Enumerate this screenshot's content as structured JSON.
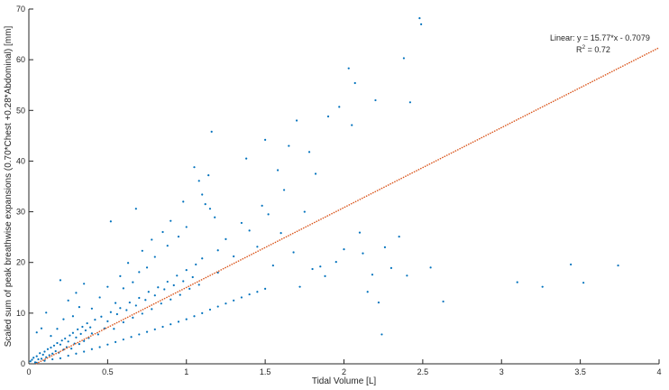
{
  "chart_data": {
    "type": "scatter",
    "title": "",
    "xlabel": "Tidal Volume [L]",
    "ylabel": "Scaled sum of peak breathwise expansions (0.70*Chest +0.28*Abdominal) [mm]",
    "xlim": [
      0,
      4
    ],
    "ylim": [
      0,
      70
    ],
    "xticks": [
      0,
      0.5,
      1,
      1.5,
      2,
      2.5,
      3,
      3.5,
      4
    ],
    "xtick_labels": [
      "0",
      "0.5",
      "1",
      "1.5",
      "2",
      "2.5",
      "3",
      "3.5",
      "4"
    ],
    "yticks": [
      0,
      10,
      20,
      30,
      40,
      50,
      60,
      70
    ],
    "ytick_labels": [
      "0",
      "10",
      "20",
      "30",
      "40",
      "50",
      "60",
      "70"
    ],
    "grid": false,
    "colors": {
      "points": "#0072BD",
      "fit": "#D95319",
      "axis": "#262626"
    },
    "series": [
      {
        "type": "scatter",
        "points": [
          [
            0.01,
            0.5
          ],
          [
            0.02,
            0.8
          ],
          [
            0.03,
            1.2
          ],
          [
            0.04,
            0.3
          ],
          [
            0.05,
            1.5
          ],
          [
            0.06,
            0.9
          ],
          [
            0.07,
            2.1
          ],
          [
            0.08,
            1.0
          ],
          [
            0.09,
            1.8
          ],
          [
            0.1,
            2.4
          ],
          [
            0.11,
            1.3
          ],
          [
            0.12,
            2.9
          ],
          [
            0.13,
            1.7
          ],
          [
            0.14,
            3.2
          ],
          [
            0.15,
            2.0
          ],
          [
            0.16,
            3.6
          ],
          [
            0.17,
            2.5
          ],
          [
            0.18,
            4.1
          ],
          [
            0.19,
            2.2
          ],
          [
            0.2,
            3.8
          ],
          [
            0.21,
            4.6
          ],
          [
            0.22,
            2.8
          ],
          [
            0.23,
            5.0
          ],
          [
            0.24,
            3.3
          ],
          [
            0.25,
            4.4
          ],
          [
            0.26,
            5.6
          ],
          [
            0.27,
            3.0
          ],
          [
            0.28,
            6.1
          ],
          [
            0.29,
            4.0
          ],
          [
            0.3,
            5.2
          ],
          [
            0.31,
            6.8
          ],
          [
            0.32,
            3.9
          ],
          [
            0.33,
            5.9
          ],
          [
            0.34,
            7.3
          ],
          [
            0.35,
            4.5
          ],
          [
            0.36,
            6.6
          ],
          [
            0.37,
            8.0
          ],
          [
            0.38,
            5.1
          ],
          [
            0.39,
            7.2
          ],
          [
            0.4,
            6.0
          ],
          [
            0.42,
            8.7
          ],
          [
            0.44,
            5.8
          ],
          [
            0.46,
            9.3
          ],
          [
            0.48,
            7.0
          ],
          [
            0.5,
            8.4
          ],
          [
            0.52,
            10.2
          ],
          [
            0.54,
            6.9
          ],
          [
            0.56,
            9.8
          ],
          [
            0.58,
            11.0
          ],
          [
            0.6,
            8.2
          ],
          [
            0.62,
            10.6
          ],
          [
            0.64,
            12.1
          ],
          [
            0.66,
            9.1
          ],
          [
            0.68,
            11.5
          ],
          [
            0.7,
            13.0
          ],
          [
            0.72,
            9.9
          ],
          [
            0.74,
            12.6
          ],
          [
            0.76,
            14.2
          ],
          [
            0.78,
            10.8
          ],
          [
            0.8,
            13.5
          ],
          [
            0.82,
            15.1
          ],
          [
            0.84,
            11.9
          ],
          [
            0.86,
            14.7
          ],
          [
            0.88,
            16.2
          ],
          [
            0.9,
            12.7
          ],
          [
            0.92,
            15.5
          ],
          [
            0.94,
            17.4
          ],
          [
            0.96,
            13.6
          ],
          [
            0.98,
            16.3
          ],
          [
            1.0,
            18.5
          ],
          [
            1.02,
            14.8
          ],
          [
            1.04,
            17.1
          ],
          [
            1.06,
            19.6
          ],
          [
            1.08,
            15.6
          ],
          [
            1.1,
            20.8
          ],
          [
            1.12,
            31.5
          ],
          [
            1.14,
            37.2
          ],
          [
            1.16,
            45.8
          ],
          [
            1.18,
            28.9
          ],
          [
            1.2,
            22.4
          ],
          [
            1.05,
            38.8
          ],
          [
            1.08,
            36.1
          ],
          [
            1.1,
            33.4
          ],
          [
            1.15,
            30.6
          ],
          [
            1.2,
            18.0
          ],
          [
            1.25,
            24.6
          ],
          [
            1.3,
            21.2
          ],
          [
            1.35,
            27.8
          ],
          [
            1.38,
            40.5
          ],
          [
            1.4,
            26.3
          ],
          [
            1.45,
            23.1
          ],
          [
            1.48,
            31.2
          ],
          [
            1.5,
            44.2
          ],
          [
            1.52,
            29.5
          ],
          [
            1.55,
            19.4
          ],
          [
            1.58,
            38.2
          ],
          [
            1.6,
            25.8
          ],
          [
            1.62,
            34.3
          ],
          [
            1.65,
            43.0
          ],
          [
            1.68,
            22.0
          ],
          [
            1.7,
            48.0
          ],
          [
            1.72,
            15.2
          ],
          [
            1.75,
            30.0
          ],
          [
            1.78,
            41.8
          ],
          [
            1.8,
            18.7
          ],
          [
            1.82,
            37.5
          ],
          [
            1.85,
            19.2
          ],
          [
            1.88,
            17.3
          ],
          [
            1.9,
            48.8
          ],
          [
            1.95,
            20.1
          ],
          [
            1.97,
            50.7
          ],
          [
            2.0,
            22.6
          ],
          [
            2.03,
            58.3
          ],
          [
            2.05,
            47.1
          ],
          [
            2.07,
            55.4
          ],
          [
            2.1,
            25.9
          ],
          [
            2.12,
            21.8
          ],
          [
            2.15,
            14.2
          ],
          [
            2.18,
            17.6
          ],
          [
            2.2,
            52.0
          ],
          [
            2.22,
            12.1
          ],
          [
            2.24,
            5.8
          ],
          [
            2.26,
            23.0
          ],
          [
            2.3,
            18.9
          ],
          [
            2.35,
            25.1
          ],
          [
            2.38,
            60.3
          ],
          [
            2.4,
            17.4
          ],
          [
            2.42,
            51.6
          ],
          [
            2.48,
            68.2
          ],
          [
            2.49,
            67.0
          ],
          [
            2.55,
            19.0
          ],
          [
            2.63,
            12.3
          ],
          [
            3.1,
            16.1
          ],
          [
            3.26,
            15.2
          ],
          [
            3.44,
            19.6
          ],
          [
            3.52,
            16.0
          ],
          [
            3.74,
            19.4
          ],
          [
            0.05,
            6.2
          ],
          [
            0.08,
            7.0
          ],
          [
            0.11,
            10.1
          ],
          [
            0.14,
            5.5
          ],
          [
            0.18,
            6.9
          ],
          [
            0.2,
            16.5
          ],
          [
            0.22,
            8.8
          ],
          [
            0.25,
            12.5
          ],
          [
            0.28,
            9.4
          ],
          [
            0.3,
            14.0
          ],
          [
            0.32,
            11.2
          ],
          [
            0.35,
            15.8
          ],
          [
            0.4,
            10.9
          ],
          [
            0.45,
            13.1
          ],
          [
            0.5,
            15.2
          ],
          [
            0.52,
            28.1
          ],
          [
            0.55,
            12.0
          ],
          [
            0.58,
            17.3
          ],
          [
            0.6,
            14.9
          ],
          [
            0.63,
            19.9
          ],
          [
            0.66,
            16.1
          ],
          [
            0.68,
            30.6
          ],
          [
            0.7,
            18.1
          ],
          [
            0.72,
            22.3
          ],
          [
            0.75,
            19.0
          ],
          [
            0.78,
            24.5
          ],
          [
            0.8,
            21.1
          ],
          [
            0.85,
            26.0
          ],
          [
            0.88,
            23.3
          ],
          [
            0.9,
            28.2
          ],
          [
            0.95,
            25.1
          ],
          [
            0.98,
            32.0
          ],
          [
            1.0,
            27.0
          ],
          [
            0.05,
            0.2
          ],
          [
            0.1,
            0.6
          ],
          [
            0.15,
            0.9
          ],
          [
            0.2,
            1.1
          ],
          [
            0.25,
            1.6
          ],
          [
            0.3,
            2.0
          ],
          [
            0.35,
            2.4
          ],
          [
            0.4,
            2.9
          ],
          [
            0.45,
            3.3
          ],
          [
            0.5,
            3.8
          ],
          [
            0.55,
            4.3
          ],
          [
            0.6,
            4.8
          ],
          [
            0.65,
            5.3
          ],
          [
            0.7,
            5.8
          ],
          [
            0.75,
            6.3
          ],
          [
            0.8,
            6.8
          ],
          [
            0.85,
            7.3
          ],
          [
            0.9,
            7.8
          ],
          [
            0.95,
            8.3
          ],
          [
            1.0,
            8.8
          ],
          [
            1.05,
            9.4
          ],
          [
            1.1,
            10.0
          ],
          [
            1.15,
            10.7
          ],
          [
            1.2,
            11.3
          ],
          [
            1.25,
            11.9
          ],
          [
            1.3,
            12.5
          ],
          [
            1.35,
            13.1
          ],
          [
            1.4,
            13.7
          ],
          [
            1.45,
            14.2
          ],
          [
            1.5,
            14.8
          ]
        ]
      },
      {
        "type": "line",
        "fit": {
          "slope": 15.77,
          "intercept": -0.7079
        },
        "x": [
          0,
          4
        ]
      }
    ],
    "annotations": {
      "fit_text": "Linear:  y = 15.77*x - 0.7079",
      "r2_prefix": "R",
      "r2_exp": "2",
      "r2_suffix": " = 0.72"
    }
  }
}
